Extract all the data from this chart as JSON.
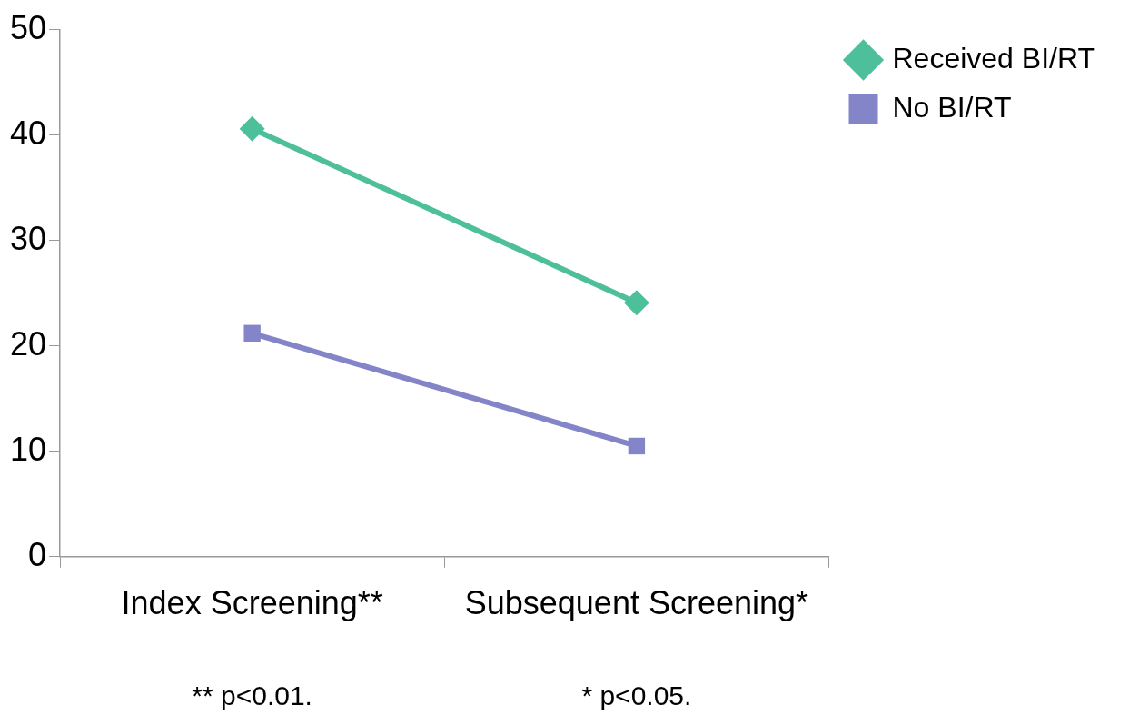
{
  "chart_data": {
    "type": "line",
    "categories": [
      "Index Screening**",
      "Subsequent Screening*"
    ],
    "series": [
      {
        "name": "Received BI/RT",
        "color": "#4dbf9a",
        "marker": "diamond",
        "values": [
          40.6,
          24.1
        ]
      },
      {
        "name": "No BI/RT",
        "color": "#8484c8",
        "marker": "square",
        "values": [
          21.2,
          10.5
        ]
      }
    ],
    "ylim": [
      0,
      50
    ],
    "yticks": [
      0,
      10,
      20,
      30,
      40,
      50
    ],
    "grid": false,
    "legend": "top right",
    "line_style": "solid",
    "annotations": [
      "** p<0.01.",
      "* p<0.05."
    ]
  }
}
